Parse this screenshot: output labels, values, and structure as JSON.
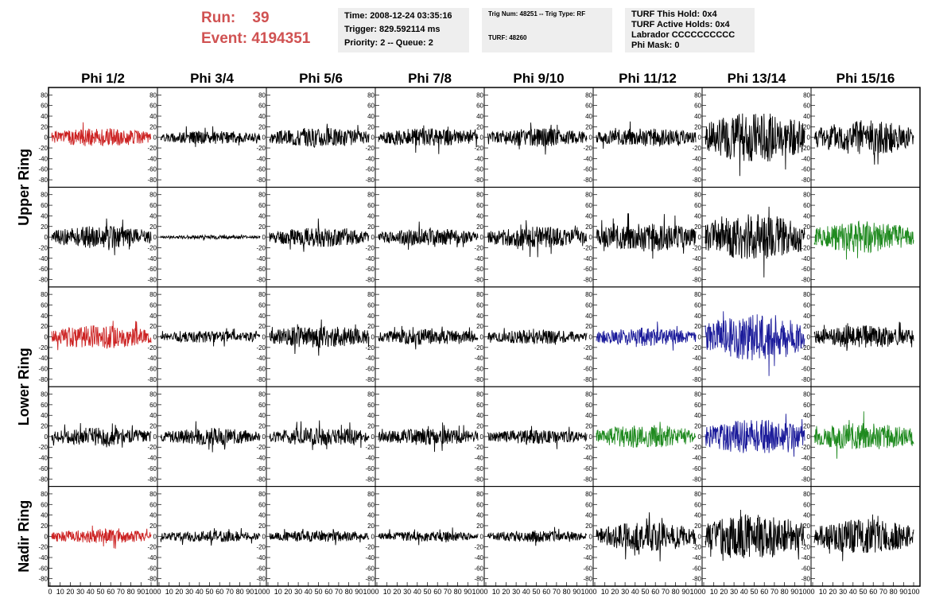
{
  "header": {
    "run_label": "Run:",
    "run_value": "39",
    "event_label": "Event:",
    "event_value": "4194351"
  },
  "time_box": {
    "time": "Time: 2008-12-24 03:35:16",
    "trigger": "Trigger: 829.592114 ms",
    "priority": "Priority: 2 -- Queue: 2"
  },
  "trig_box": {
    "trig": "Trig Num: 48251 -- Trig Type: RF",
    "turf": "TURF: 48260"
  },
  "turf_box": {
    "this_hold": "TURF This Hold: 0x4",
    "active_holds": "TURF Active Holds: 0x4",
    "labrador": "Labrador CCCCCCCCCC",
    "phi_mask": "Phi Mask: 0"
  },
  "colors": {
    "red": "#cc2222",
    "blue": "#1a1a9a",
    "green": "#1f8a1f",
    "black": "#000000",
    "header": "#d05252"
  },
  "chart_data": {
    "type": "line",
    "columns": [
      "Phi 1/2",
      "Phi 3/4",
      "Phi 5/6",
      "Phi 7/8",
      "Phi 9/10",
      "Phi 11/12",
      "Phi 13/14",
      "Phi 15/16"
    ],
    "row_labels": [
      "Upper Ring",
      "Lower Ring",
      "Nadir Ring"
    ],
    "ylim": [
      -85,
      85
    ],
    "xlim": [
      0,
      100
    ],
    "yticks": [
      -80,
      -60,
      -40,
      -20,
      0,
      20,
      40,
      60,
      80
    ],
    "xticks": [
      "0",
      "10",
      "20",
      "30",
      "40",
      "50",
      "60",
      "70",
      "80",
      "90",
      "100"
    ],
    "panels": [
      [
        {
          "color": "red",
          "amp": 14,
          "seed": 1
        },
        {
          "color": "black",
          "amp": 10,
          "seed": 2
        },
        {
          "color": "black",
          "amp": 15,
          "seed": 3
        },
        {
          "color": "black",
          "amp": 14,
          "seed": 4
        },
        {
          "color": "black",
          "amp": 14,
          "seed": 5
        },
        {
          "color": "black",
          "amp": 14,
          "seed": 6
        },
        {
          "color": "black",
          "amp": 38,
          "seed": 7
        },
        {
          "color": "black",
          "amp": 26,
          "seed": 8
        }
      ],
      [
        {
          "color": "black",
          "amp": 17,
          "seed": 9
        },
        {
          "color": "black",
          "amp": 3,
          "seed": 10
        },
        {
          "color": "black",
          "amp": 15,
          "seed": 11
        },
        {
          "color": "black",
          "amp": 13,
          "seed": 12
        },
        {
          "color": "black",
          "amp": 16,
          "seed": 13
        },
        {
          "color": "black",
          "amp": 22,
          "seed": 14
        },
        {
          "color": "black",
          "amp": 35,
          "seed": 15
        },
        {
          "color": "green",
          "amp": 24,
          "seed": 16
        }
      ],
      [
        {
          "color": "red",
          "amp": 18,
          "seed": 17
        },
        {
          "color": "black",
          "amp": 9,
          "seed": 18
        },
        {
          "color": "black",
          "amp": 17,
          "seed": 19
        },
        {
          "color": "black",
          "amp": 12,
          "seed": 20
        },
        {
          "color": "black",
          "amp": 11,
          "seed": 21
        },
        {
          "color": "blue",
          "amp": 14,
          "seed": 22
        },
        {
          "color": "blue",
          "amp": 36,
          "seed": 23
        },
        {
          "color": "black",
          "amp": 17,
          "seed": 24
        }
      ],
      [
        {
          "color": "black",
          "amp": 14,
          "seed": 25
        },
        {
          "color": "black",
          "amp": 13,
          "seed": 26
        },
        {
          "color": "black",
          "amp": 14,
          "seed": 27
        },
        {
          "color": "black",
          "amp": 13,
          "seed": 28
        },
        {
          "color": "black",
          "amp": 11,
          "seed": 29
        },
        {
          "color": "green",
          "amp": 18,
          "seed": 30
        },
        {
          "color": "blue",
          "amp": 26,
          "seed": 31
        },
        {
          "color": "green",
          "amp": 21,
          "seed": 32
        }
      ],
      [
        {
          "color": "red",
          "amp": 11,
          "seed": 33
        },
        {
          "color": "black",
          "amp": 9,
          "seed": 34
        },
        {
          "color": "black",
          "amp": 9,
          "seed": 35
        },
        {
          "color": "black",
          "amp": 8,
          "seed": 36
        },
        {
          "color": "black",
          "amp": 9,
          "seed": 37
        },
        {
          "color": "black",
          "amp": 22,
          "seed": 38
        },
        {
          "color": "black",
          "amp": 34,
          "seed": 39
        },
        {
          "color": "black",
          "amp": 26,
          "seed": 40
        }
      ]
    ]
  }
}
